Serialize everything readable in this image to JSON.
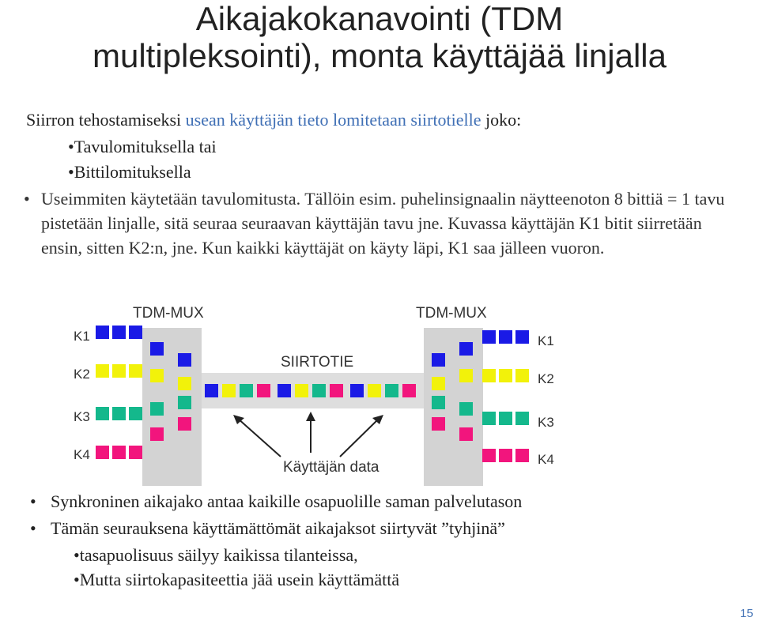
{
  "title_line1": "Aikajakokanavointi (TDM",
  "title_line2": "multipleksointi), monta käyttäjää linjalla",
  "intro": {
    "lead": "Siirron tehostamiseksi ",
    "highlight": "usean käyttäjän tieto lomitetaan siirtotielle",
    "tail": " joko:"
  },
  "sub_bullets": [
    "•Tavulomituksella tai",
    "•Bittilomituksella"
  ],
  "paragraph": {
    "bullet": "•",
    "text": "Useimmiten käytetään tavulomitusta. Tällöin esim. puhelinsignaalin näytteenoton 8 bittiä = 1 tavu pistetään linjalle, sitä seuraa seuraavan käyttäjän tavu jne. Kuvassa käyttäjän K1 bitit siirretään ensin, sitten K2:n, jne. Kun kaikki käyttäjät on käyty läpi, K1 saa jälleen vuoron."
  },
  "diagram": {
    "mux_left_label": "TDM-MUX",
    "mux_right_label": "TDM-MUX",
    "line_label": "SIIRTOTIE",
    "data_label": "Käyttäjän data",
    "users_left": [
      "K1",
      "K2",
      "K3",
      "K4"
    ],
    "users_right": [
      "K1",
      "K2",
      "K3",
      "K4"
    ],
    "colors": {
      "K1": "#1a1ae6",
      "K2": "#f2f20a",
      "K3": "#14b88c",
      "K4": "#f2157d",
      "mux": "#d3d3d3",
      "line": "#dedede"
    }
  },
  "bottom_bullets": [
    "Synkroninen aikajako antaa kaikille osapuolille saman palvelutason",
    "Tämän seurauksena käyttämättömät aikajaksot siirtyvät ”tyhjinä”"
  ],
  "bottom_bullet_symbol": "•",
  "bottom_sub_bullets": [
    "•tasapuolisuus säilyy kaikissa tilanteissa,",
    "•Mutta siirtokapasiteettia jää usein käyttämättä"
  ],
  "page_number": "15"
}
